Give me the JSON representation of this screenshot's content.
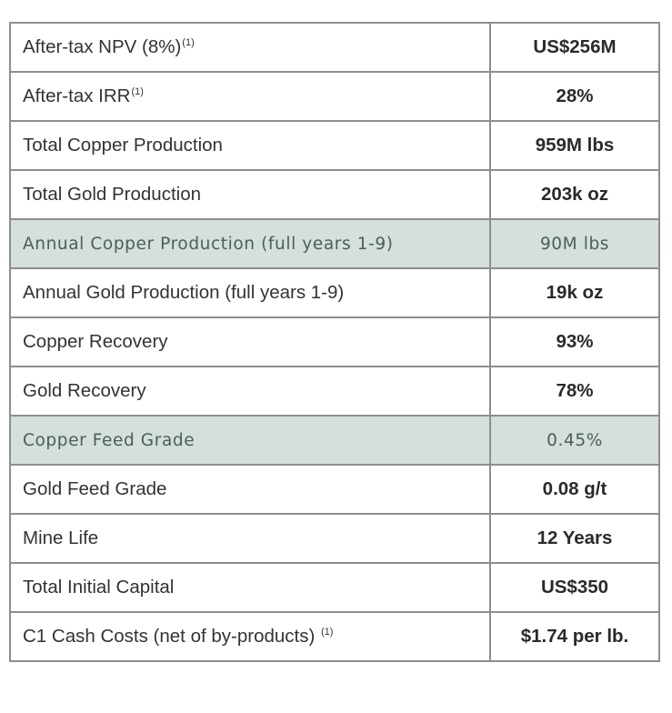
{
  "rows": [
    {
      "label": "After-tax NPV (8%)",
      "note": "(1)",
      "value": "US$256M",
      "highlight": false
    },
    {
      "label": "After-tax IRR",
      "note": "(1)",
      "value": "28%",
      "highlight": false
    },
    {
      "label": "Total Copper Production",
      "note": "",
      "value": "959M lbs",
      "highlight": false
    },
    {
      "label": "Total Gold Production",
      "note": "",
      "value": "203k oz",
      "highlight": false
    },
    {
      "label": "Annual Copper Production (full years 1-9)",
      "note": "",
      "value": "90M lbs",
      "highlight": true
    },
    {
      "label": "Annual Gold Production (full years 1-9)",
      "note": "",
      "value": "19k oz",
      "highlight": false
    },
    {
      "label": "Copper Recovery",
      "note": "",
      "value": "93%",
      "highlight": false
    },
    {
      "label": "Gold Recovery",
      "note": "",
      "value": "78%",
      "highlight": false
    },
    {
      "label": "Copper Feed Grade",
      "note": "",
      "value": "0.45%",
      "highlight": true
    },
    {
      "label": "Gold Feed Grade",
      "note": "",
      "value": "0.08 g/t",
      "highlight": false
    },
    {
      "label": "Mine Life",
      "note": "",
      "value": "12 Years",
      "highlight": false
    },
    {
      "label": "Total Initial Capital",
      "note": "",
      "value": "US$350",
      "highlight": false
    },
    {
      "label": "C1 Cash Costs (net of by-products) ",
      "note": "(1)",
      "value": "$1.74 per lb.",
      "highlight": false
    }
  ],
  "colors": {
    "border": "#8e8e8e",
    "highlight_bg": "#d5dfdb",
    "highlight_text": "#4a5f57"
  }
}
